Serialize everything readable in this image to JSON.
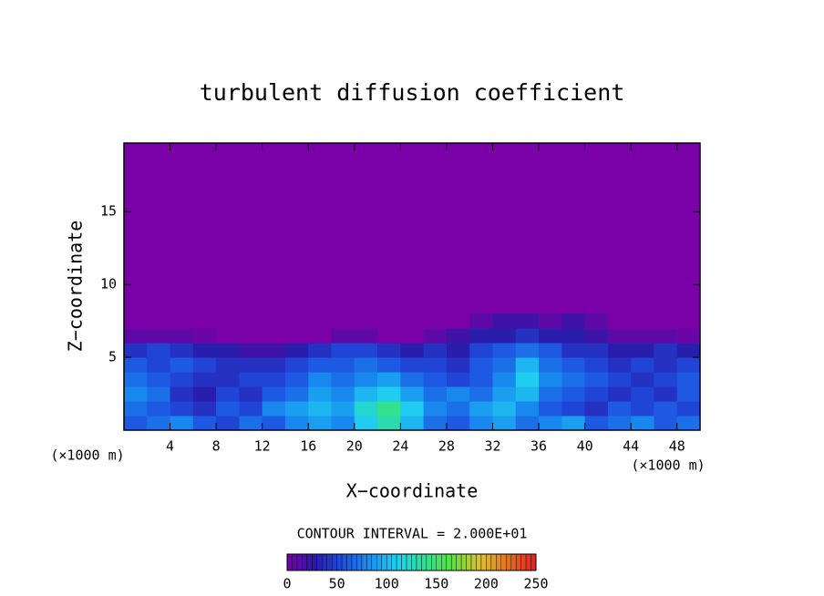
{
  "chart_data": {
    "type": "heatmap",
    "title": "turbulent diffusion coefficient",
    "xlabel": "X−coordinate",
    "ylabel": "Z−coordinate",
    "xunit_labels": [
      "(×1000 m)",
      "(×1000 m)"
    ],
    "legend_title": "CONTOUR INTERVAL = 2.000E+01",
    "xlim": [
      0,
      50
    ],
    "ylim": [
      0,
      19.7
    ],
    "xticks": [
      4,
      8,
      12,
      16,
      20,
      24,
      28,
      32,
      36,
      40,
      44,
      48
    ],
    "yticks": [
      5,
      10,
      15
    ],
    "x": [
      1,
      3,
      5,
      7,
      9,
      11,
      13,
      15,
      17,
      19,
      21,
      23,
      25,
      27,
      29,
      31,
      33,
      35,
      37,
      39,
      41,
      43,
      45,
      47,
      49
    ],
    "y": [
      0.5,
      1.5,
      2.5,
      3.5,
      4.5,
      5.5,
      6.5,
      7.5
    ],
    "z": [
      [
        60,
        70,
        80,
        60,
        50,
        70,
        60,
        80,
        90,
        80,
        110,
        130,
        100,
        70,
        60,
        80,
        90,
        70,
        80,
        90,
        60,
        70,
        80,
        60,
        70
      ],
      [
        70,
        60,
        50,
        40,
        60,
        50,
        80,
        90,
        100,
        90,
        120,
        140,
        110,
        80,
        70,
        90,
        100,
        80,
        60,
        50,
        40,
        60,
        50,
        60,
        50
      ],
      [
        80,
        70,
        40,
        30,
        50,
        40,
        60,
        70,
        90,
        80,
        100,
        110,
        90,
        70,
        80,
        70,
        90,
        100,
        70,
        60,
        50,
        40,
        50,
        40,
        60
      ],
      [
        70,
        60,
        50,
        40,
        40,
        50,
        50,
        60,
        80,
        70,
        80,
        90,
        70,
        60,
        50,
        60,
        80,
        110,
        80,
        70,
        60,
        50,
        40,
        50,
        60
      ],
      [
        60,
        50,
        60,
        50,
        40,
        40,
        40,
        50,
        60,
        60,
        70,
        60,
        50,
        50,
        40,
        60,
        70,
        100,
        70,
        60,
        50,
        40,
        50,
        40,
        50
      ],
      [
        40,
        50,
        40,
        30,
        30,
        20,
        20,
        30,
        40,
        50,
        50,
        40,
        30,
        40,
        30,
        50,
        60,
        70,
        60,
        40,
        40,
        30,
        30,
        40,
        30
      ],
      [
        10,
        10,
        10,
        5,
        0,
        0,
        0,
        0,
        0,
        10,
        10,
        0,
        0,
        10,
        20,
        30,
        30,
        40,
        30,
        30,
        20,
        10,
        10,
        10,
        5
      ],
      [
        0,
        0,
        0,
        0,
        0,
        0,
        0,
        0,
        0,
        0,
        0,
        0,
        0,
        0,
        0,
        10,
        20,
        20,
        10,
        20,
        10,
        0,
        0,
        0,
        0
      ]
    ],
    "clim": [
      0,
      250
    ],
    "cticks": [
      0,
      50,
      100,
      150,
      200,
      250
    ],
    "colormap": [
      "#7a00a8",
      "#2a1aa8",
      "#1e4ee0",
      "#1890f0",
      "#20d0f0",
      "#30e090",
      "#60e040",
      "#e0c030",
      "#e07020",
      "#e02020"
    ]
  }
}
